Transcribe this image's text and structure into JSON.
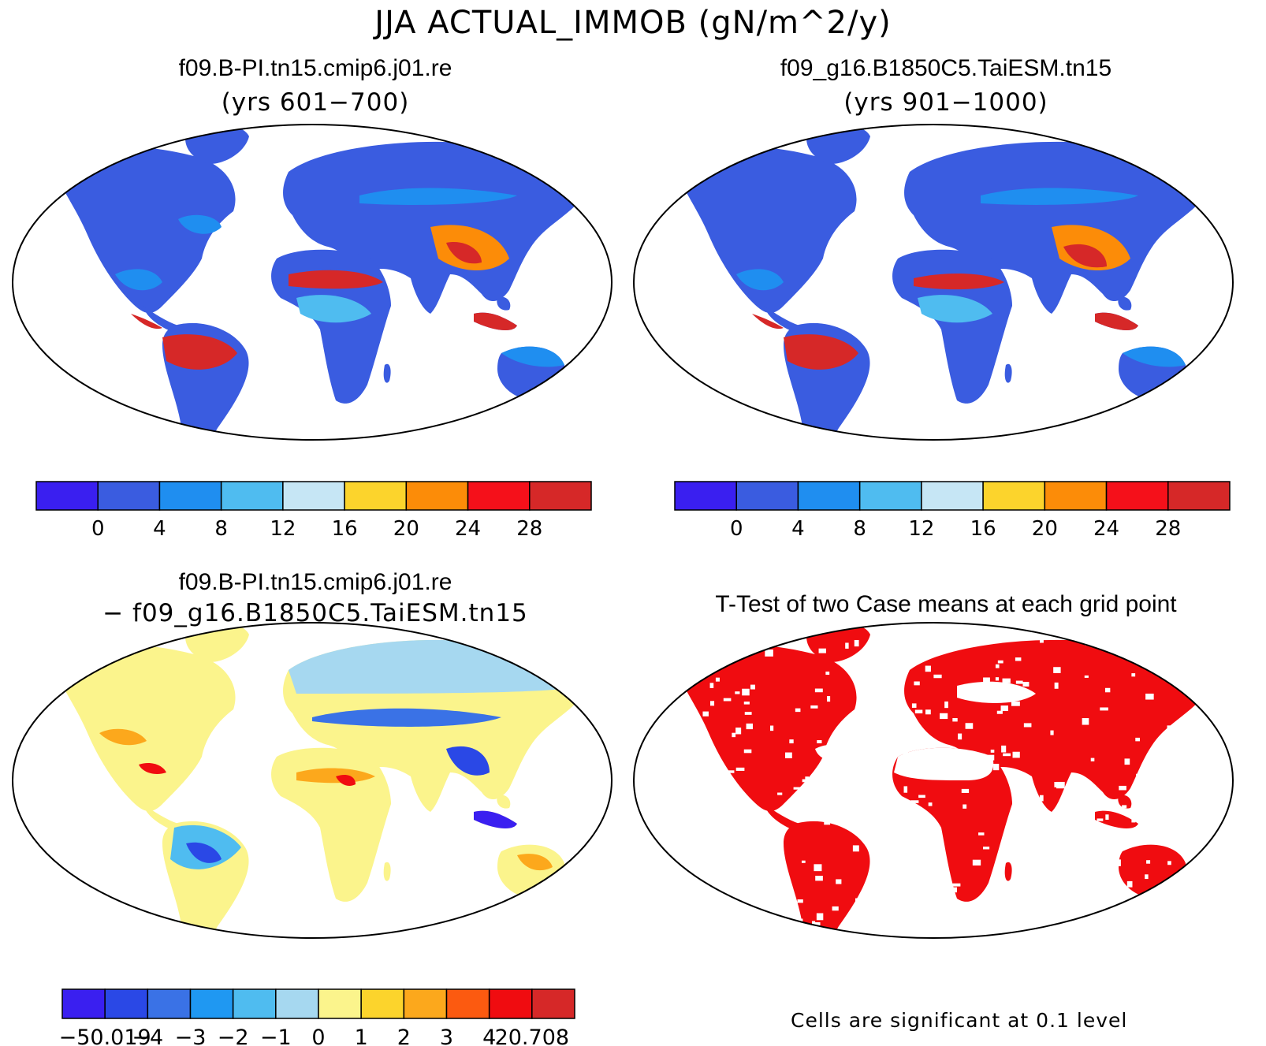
{
  "figure": {
    "title": "JJA ACTUAL_IMMOB (gN/m^2/y)"
  },
  "panels": [
    {
      "id": "case1",
      "title": "f09.B-PI.tn15.cmip6.j01.re",
      "subtitle": "(yrs 601−700)",
      "colorbar": {
        "colors": [
          "#3a1ff0",
          "#3a5ce0",
          "#1f8ef0",
          "#4fbcf0",
          "#c6e6f5",
          "#fcd42c",
          "#fc8c08",
          "#f5101a",
          "#d62828"
        ],
        "labels": [
          "0",
          "4",
          "8",
          "12",
          "16",
          "20",
          "24",
          "28"
        ]
      }
    },
    {
      "id": "case2",
      "title": "f09_g16.B1850C5.TaiESM.tn15",
      "subtitle": "(yrs 901−1000)",
      "colorbar": {
        "colors": [
          "#3a1ff0",
          "#3a5ce0",
          "#1f8ef0",
          "#4fbcf0",
          "#c6e6f5",
          "#fcd42c",
          "#fc8c08",
          "#f5101a",
          "#d62828"
        ],
        "labels": [
          "0",
          "4",
          "8",
          "12",
          "16",
          "20",
          "24",
          "28"
        ]
      }
    },
    {
      "id": "difference",
      "title": "f09.B-PI.tn15.cmip6.j01.re",
      "subtitle": "− f09_g16.B1850C5.TaiESM.tn15",
      "colorbar": {
        "colors": [
          "#3a1ff0",
          "#2a48e6",
          "#3a72e6",
          "#1f98f2",
          "#4fbcf0",
          "#a6d8f0",
          "#fbf48c",
          "#fcd42c",
          "#fca81c",
          "#fc5a10",
          "#f00c10",
          "#d62828"
        ],
        "labels": [
          "−50.019",
          "−4",
          "−3",
          "−2",
          "−1",
          "0",
          "1",
          "2",
          "3",
          "4",
          "20.708"
        ]
      }
    },
    {
      "id": "ttest",
      "title": "T-Test of two Case means at each grid point",
      "note": "Cells are significant at 0.1 level",
      "significant_color": "#f00c10"
    }
  ]
}
